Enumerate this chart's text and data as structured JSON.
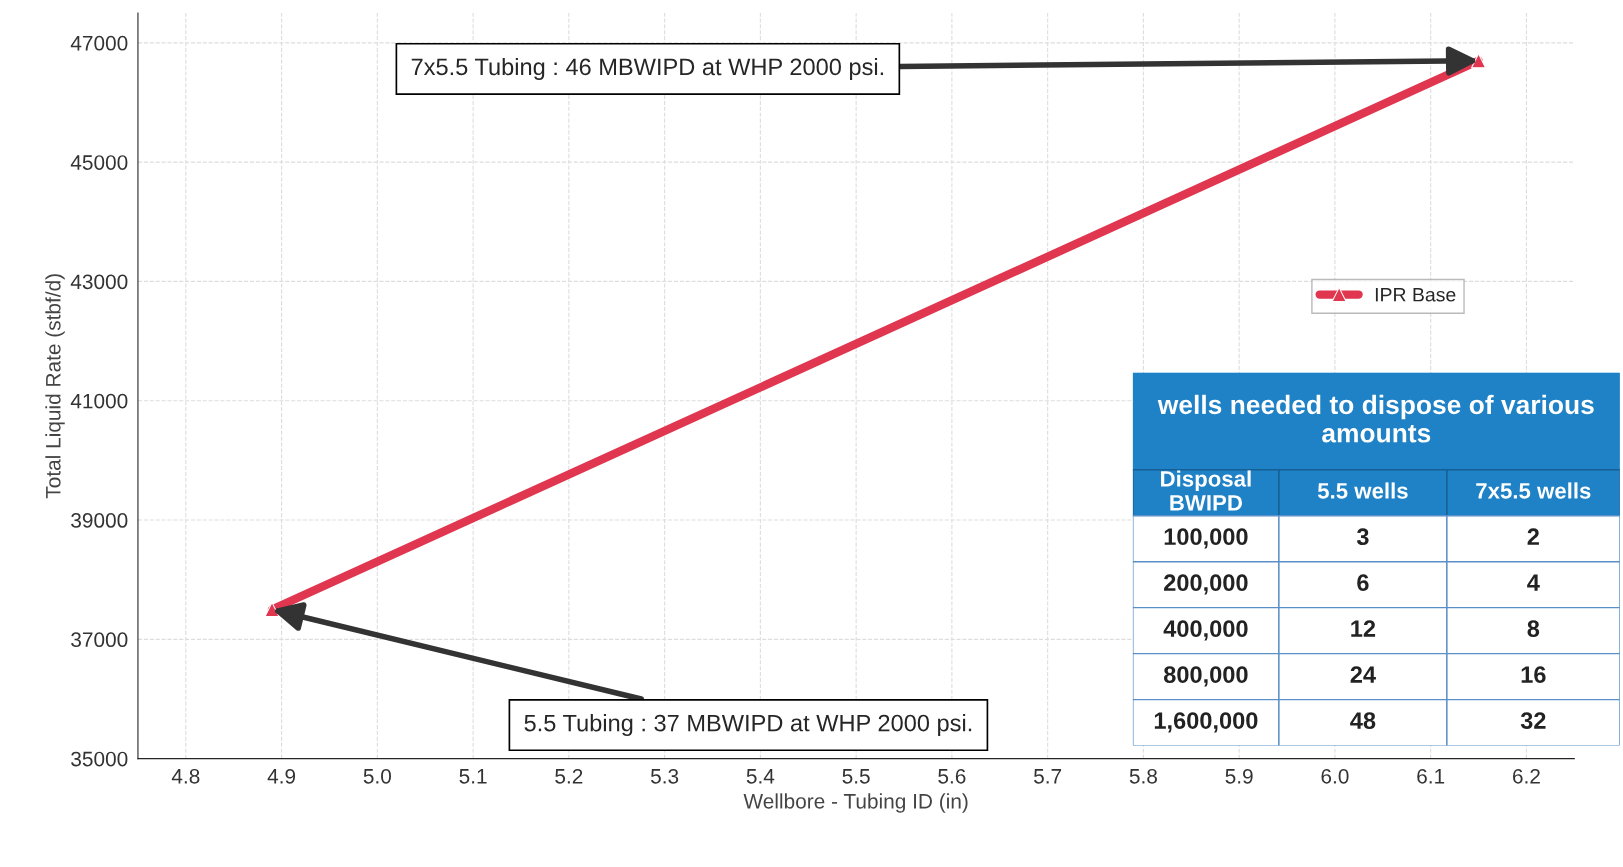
{
  "chart_data": {
    "type": "line",
    "xlabel": "Wellbore - Tubing ID (in)",
    "ylabel": "Total Liquid Rate (stbf/d)",
    "series": [
      {
        "name": "IPR Base",
        "color": "#e0364f",
        "x": [
          4.89,
          6.15
        ],
        "values": [
          37500,
          46700
        ]
      }
    ],
    "xlim": [
      4.75,
      6.25
    ],
    "xticks": [
      {
        "value": 4.8,
        "label": "4.8"
      },
      {
        "value": 4.9,
        "label": "4.9"
      },
      {
        "value": 5.0,
        "label": "5.0"
      },
      5.1,
      5.2,
      5.3,
      5.4,
      5.5,
      5.6,
      5.7,
      5.8,
      5.9,
      {
        "value": 6.0,
        "label": "6.0"
      },
      6.1,
      6.2
    ],
    "ylim": [
      35000,
      47500
    ],
    "yticks": [
      35000,
      37000,
      39000,
      41000,
      43000,
      45000,
      47000
    ],
    "grid": true,
    "legend": "right",
    "marker": "triangle",
    "line_style": "solid",
    "annotations": [
      {
        "text": "7x5.5 Tubing : 46 MBWIPD at WHP 2000 psi.",
        "x": 6.15,
        "y": 46700
      },
      {
        "text": "5.5 Tubing : 37 MBWIPD at WHP 2000 psi.",
        "x": 4.89,
        "y": 37500
      },
      "wells needed to dispose of various amounts",
      "Disposal BWIPD",
      "5.5 wells",
      "7x5.5 wells",
      "100,000",
      "3",
      "2",
      "200,000",
      "6",
      "4",
      "400,000",
      "12",
      "8",
      "800,000",
      "24",
      "16",
      "1,600,000",
      "48",
      "32"
    ]
  }
}
